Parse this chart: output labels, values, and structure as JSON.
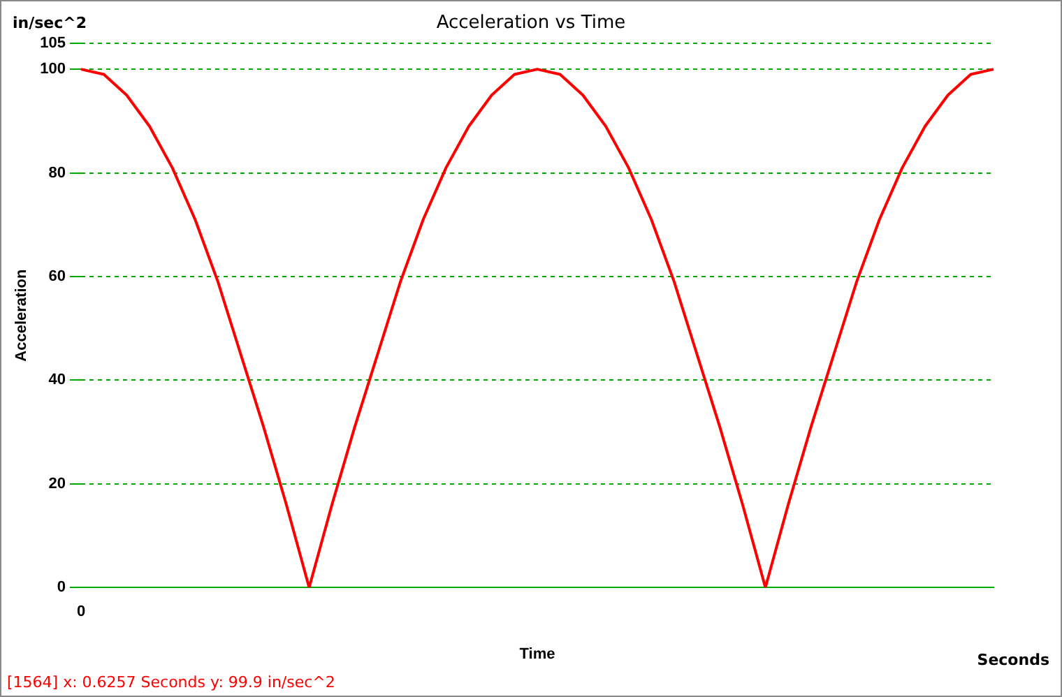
{
  "chart_data": {
    "type": "line",
    "title": "Acceleration vs Time",
    "xlabel": "Time",
    "ylabel": "Acceleration",
    "annotations": [
      "in/sec^2",
      "Seconds",
      "[1564]  x: 0.6257 Seconds  y: 99.9 in/sec^2"
    ],
    "categories": [
      "0",
      null,
      null,
      null,
      null,
      null,
      null,
      null,
      null,
      null,
      null,
      null,
      null,
      null,
      null,
      null,
      null,
      null,
      null,
      null,
      null,
      null,
      null,
      null,
      null,
      null,
      null,
      null,
      null,
      null,
      null,
      null,
      null,
      null,
      null,
      null,
      null,
      null,
      null,
      null,
      null
    ],
    "series": [
      {
        "color": "#ff0000",
        "values": [
          100,
          99,
          95,
          89,
          81,
          71,
          59,
          45,
          31,
          16,
          0,
          16,
          31,
          45,
          59,
          71,
          81,
          89,
          95,
          99,
          100,
          99,
          95,
          89,
          81,
          71,
          59,
          45,
          31,
          16,
          0,
          16,
          31,
          45,
          59,
          71,
          81,
          89,
          95,
          99,
          100
        ]
      }
    ],
    "ylim": [
      0,
      105
    ],
    "yticks": [
      0,
      20,
      40,
      60,
      80,
      100,
      105
    ],
    "grid": "y",
    "legend": false,
    "marker": "none",
    "line_style": "solid"
  }
}
